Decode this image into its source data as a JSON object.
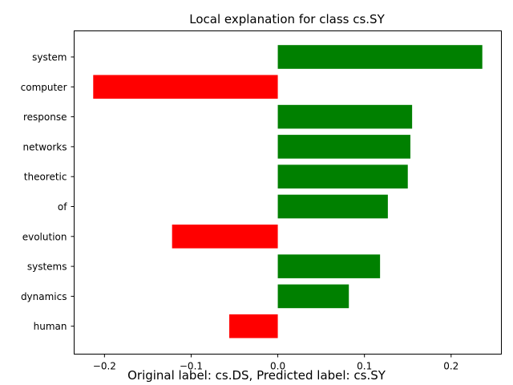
{
  "chart_data": {
    "type": "bar",
    "orientation": "horizontal",
    "title": "Local explanation for class cs.SY",
    "categories": [
      "system",
      "computer",
      "response",
      "networks",
      "theoretic",
      "of",
      "evolution",
      "systems",
      "dynamics",
      "human"
    ],
    "values": [
      0.236,
      -0.213,
      0.155,
      0.153,
      0.15,
      0.127,
      -0.122,
      0.118,
      0.082,
      -0.056
    ],
    "positive_color": "#008000",
    "negative_color": "#ff0000",
    "xlim": [
      -0.235,
      0.258
    ],
    "xticks": [
      -0.2,
      -0.1,
      0.0,
      0.1,
      0.2
    ],
    "xtick_labels": [
      "−0.2",
      "−0.1",
      "0.0",
      "0.1",
      "0.2"
    ],
    "grid": false,
    "xlabel": "",
    "ylabel": ""
  },
  "caption": "Original label: cs.DS, Predicted label: cs.SY"
}
